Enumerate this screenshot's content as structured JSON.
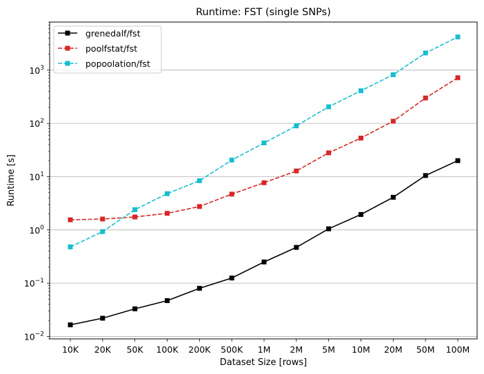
{
  "chart_data": {
    "type": "line",
    "title": "Runtime:  FST (single SNPs)",
    "xlabel": "Dataset Size  [rows]",
    "ylabel": "Runtime  [s]",
    "y_scale": "log",
    "ylim": [
      0.009,
      8000
    ],
    "y_ticks": [
      {
        "value": 0.01,
        "base": "10",
        "exp": "−2"
      },
      {
        "value": 0.1,
        "base": "10",
        "exp": "−1"
      },
      {
        "value": 1,
        "base": "10",
        "exp": "0"
      },
      {
        "value": 10,
        "base": "10",
        "exp": "1"
      },
      {
        "value": 100,
        "base": "10",
        "exp": "2"
      },
      {
        "value": 1000,
        "base": "10",
        "exp": "3"
      }
    ],
    "grid": "horizontal",
    "legend_position": "top-left",
    "categories": [
      "10K",
      "20K",
      "50K",
      "100K",
      "200K",
      "500K",
      "1M",
      "2M",
      "5M",
      "10M",
      "20M",
      "50M",
      "100M"
    ],
    "series": [
      {
        "name": "grenedalf/fst",
        "color": "#000000",
        "dash": "solid",
        "values": [
          0.0165,
          0.022,
          0.033,
          0.047,
          0.08,
          0.125,
          0.25,
          0.47,
          1.05,
          1.95,
          4.1,
          10.5,
          20
        ]
      },
      {
        "name": "poolfstat/fst",
        "color": "#d62728",
        "dash": "dashed",
        "values": [
          1.55,
          1.6,
          1.75,
          2.05,
          2.75,
          4.7,
          7.7,
          12.8,
          28,
          53,
          110,
          300,
          720
        ]
      },
      {
        "name": "popoolation/fst",
        "color": "#17becf",
        "dash": "dashed",
        "values": [
          0.48,
          0.93,
          2.4,
          4.8,
          8.4,
          20.5,
          43,
          90,
          205,
          410,
          820,
          2100,
          4200
        ]
      }
    ]
  }
}
